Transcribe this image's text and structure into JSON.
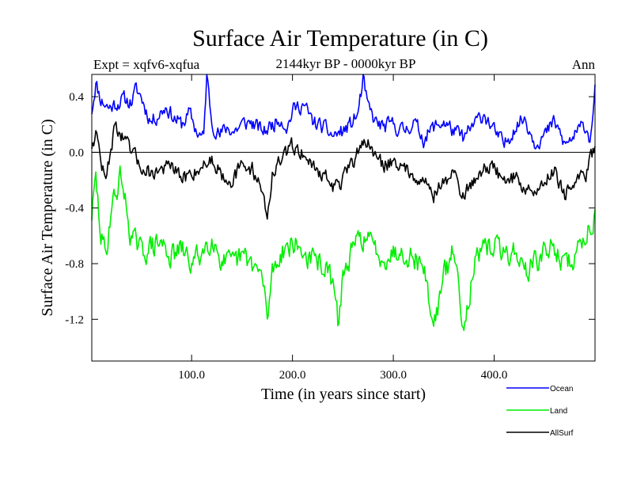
{
  "chart_data": {
    "type": "line",
    "title": "Surface Air Temperature (in C)",
    "subtitle": "2144kyr BP - 0000kyr BP",
    "experiment_label": "Expt = xqfv6-xqfua",
    "season_label": "Ann",
    "xlabel": "Time (in years since start)",
    "ylabel": "Surface Air Temperature (in C)",
    "xlim": [
      1,
      500
    ],
    "ylim": [
      -1.5,
      0.56
    ],
    "xticks": [
      100,
      200,
      300,
      400
    ],
    "xtick_labels": [
      "100.0",
      "200.0",
      "300.0",
      "400.0"
    ],
    "yticks": [
      0.4,
      0.0,
      -0.4,
      -0.8,
      -1.2
    ],
    "ytick_labels": [
      "0.4",
      "0.0",
      "-0.4",
      "-0.8",
      "-1.2"
    ],
    "zero_line": true,
    "legend_position": "bottom-right, below plot",
    "series": [
      {
        "name": "Ocean",
        "color": "#0000ff",
        "anchors": {
          "x": [
            1,
            5,
            10,
            18,
            25,
            32,
            40,
            45,
            50,
            55,
            60,
            68,
            75,
            82,
            90,
            98,
            105,
            112,
            115,
            120,
            128,
            135,
            142,
            150,
            158,
            165,
            172,
            180,
            188,
            195,
            200,
            210,
            220,
            230,
            240,
            250,
            258,
            265,
            270,
            275,
            282,
            290,
            300,
            310,
            320,
            330,
            340,
            350,
            360,
            370,
            380,
            390,
            400,
            410,
            420,
            430,
            440,
            450,
            460,
            470,
            480,
            490,
            495,
            500
          ],
          "y": [
            0.3,
            0.5,
            0.38,
            0.32,
            0.35,
            0.38,
            0.36,
            0.45,
            0.4,
            0.3,
            0.22,
            0.28,
            0.33,
            0.25,
            0.2,
            0.28,
            0.15,
            0.1,
            0.56,
            0.22,
            0.12,
            0.18,
            0.15,
            0.2,
            0.22,
            0.18,
            0.15,
            0.2,
            0.25,
            0.18,
            0.3,
            0.35,
            0.22,
            0.18,
            0.12,
            0.15,
            0.2,
            0.28,
            0.52,
            0.32,
            0.22,
            0.18,
            0.2,
            0.15,
            0.22,
            0.1,
            0.18,
            0.22,
            0.15,
            0.1,
            0.2,
            0.28,
            0.15,
            0.05,
            0.18,
            0.25,
            0.08,
            0.12,
            0.22,
            0.05,
            0.12,
            0.2,
            0.1,
            0.45
          ]
        },
        "variability": 0.09
      },
      {
        "name": "Land",
        "color": "#00ee00",
        "anchors": {
          "x": [
            1,
            5,
            10,
            15,
            20,
            25,
            30,
            35,
            40,
            50,
            60,
            70,
            80,
            90,
            100,
            110,
            120,
            130,
            140,
            150,
            160,
            170,
            175,
            180,
            190,
            200,
            210,
            220,
            230,
            240,
            245,
            250,
            260,
            270,
            280,
            290,
            300,
            310,
            320,
            330,
            340,
            350,
            360,
            370,
            380,
            390,
            400,
            410,
            420,
            430,
            440,
            450,
            460,
            470,
            480,
            490,
            500
          ],
          "y": [
            -0.45,
            -0.2,
            -0.6,
            -0.75,
            -0.4,
            -0.3,
            -0.15,
            -0.4,
            -0.6,
            -0.72,
            -0.68,
            -0.65,
            -0.75,
            -0.7,
            -0.8,
            -0.72,
            -0.6,
            -0.78,
            -0.82,
            -0.75,
            -0.8,
            -0.9,
            -1.2,
            -0.85,
            -0.7,
            -0.65,
            -0.72,
            -0.78,
            -0.8,
            -0.95,
            -1.22,
            -0.9,
            -0.7,
            -0.6,
            -0.68,
            -0.75,
            -0.72,
            -0.7,
            -0.75,
            -0.82,
            -1.25,
            -0.9,
            -0.7,
            -1.25,
            -0.8,
            -0.72,
            -0.65,
            -0.75,
            -0.7,
            -0.85,
            -0.8,
            -0.72,
            -0.68,
            -0.82,
            -0.75,
            -0.6,
            -0.45
          ]
        },
        "variability": 0.14
      },
      {
        "name": "AllSurf",
        "color": "#000000",
        "anchors": {
          "x": [
            1,
            5,
            10,
            15,
            20,
            25,
            30,
            40,
            50,
            60,
            70,
            80,
            90,
            100,
            110,
            120,
            130,
            140,
            150,
            160,
            170,
            175,
            180,
            190,
            200,
            210,
            220,
            230,
            240,
            250,
            260,
            270,
            280,
            290,
            300,
            310,
            320,
            330,
            340,
            350,
            360,
            370,
            380,
            390,
            400,
            410,
            420,
            430,
            440,
            450,
            460,
            470,
            480,
            490,
            500
          ],
          "y": [
            0.05,
            0.15,
            -0.05,
            -0.22,
            0.05,
            0.2,
            0.12,
            0.0,
            -0.1,
            -0.15,
            -0.12,
            -0.1,
            -0.2,
            -0.15,
            -0.1,
            -0.05,
            -0.15,
            -0.2,
            -0.1,
            -0.12,
            -0.25,
            -0.5,
            -0.15,
            -0.05,
            0.05,
            0.0,
            -0.1,
            -0.15,
            -0.25,
            -0.2,
            -0.08,
            0.1,
            0.0,
            -0.1,
            -0.05,
            -0.12,
            -0.15,
            -0.2,
            -0.3,
            -0.22,
            -0.15,
            -0.32,
            -0.2,
            -0.1,
            -0.12,
            -0.2,
            -0.18,
            -0.25,
            -0.3,
            -0.2,
            -0.12,
            -0.3,
            -0.22,
            -0.18,
            0.05
          ]
        },
        "variability": 0.09
      }
    ]
  }
}
